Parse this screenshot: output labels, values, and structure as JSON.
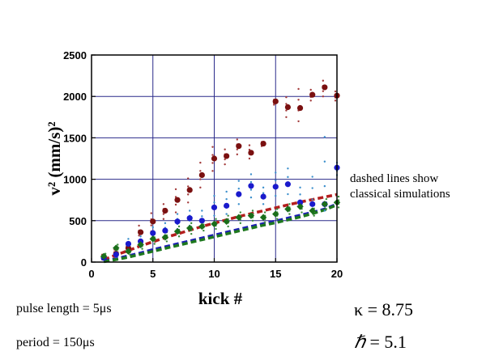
{
  "chart_data": {
    "type": "scatter",
    "xlabel": "kick #",
    "ylabel": "v² (mm/s)²",
    "xlim": [
      0,
      20
    ],
    "ylim": [
      0,
      2500
    ],
    "x_ticks": [
      0,
      5,
      10,
      15,
      20
    ],
    "y_ticks": [
      0,
      500,
      1000,
      1500,
      2000,
      2500
    ],
    "grid": true,
    "series": [
      {
        "color": "#7a1010",
        "marker": "circle",
        "x": [
          1,
          2,
          3,
          4,
          5,
          6,
          7,
          8,
          9,
          10,
          11,
          12,
          13,
          14,
          15,
          16,
          17,
          18,
          19,
          20
        ],
        "y": [
          60,
          100,
          170,
          360,
          490,
          620,
          750,
          870,
          1050,
          1250,
          1280,
          1400,
          1320,
          1430,
          1940,
          1870,
          1860,
          2020,
          2110,
          2010
        ],
        "spread": [
          [
            30,
            90
          ],
          [
            60,
            150
          ],
          [
            120,
            230
          ],
          [
            260,
            440
          ],
          [
            370,
            590
          ],
          [
            520,
            700
          ],
          [
            600,
            880
          ],
          [
            720,
            1010
          ],
          [
            900,
            1200
          ],
          [
            1100,
            1390
          ],
          [
            1180,
            1360
          ],
          [
            1300,
            1480
          ],
          [
            1250,
            1410
          ],
          [
            1400,
            1450
          ],
          [
            1900,
            1960
          ],
          [
            1750,
            1990
          ],
          [
            1700,
            2090
          ],
          [
            1950,
            2080
          ],
          [
            2000,
            2190
          ],
          [
            1950,
            2060
          ]
        ]
      },
      {
        "color": "#1a1acc",
        "marker": "circle",
        "x": [
          1,
          2,
          3,
          4,
          5,
          6,
          7,
          8,
          9,
          10,
          11,
          12,
          13,
          14,
          15,
          16,
          17,
          18,
          19,
          20
        ],
        "y": [
          50,
          90,
          220,
          250,
          350,
          380,
          490,
          530,
          500,
          660,
          680,
          820,
          920,
          790,
          910,
          940,
          720,
          700,
          700,
          1140
        ],
        "spread": [
          [
            30,
            70
          ],
          [
            60,
            130
          ],
          [
            140,
            280
          ],
          [
            180,
            310
          ],
          [
            260,
            420
          ],
          [
            300,
            470
          ],
          [
            400,
            580
          ],
          [
            440,
            620
          ],
          [
            420,
            620
          ],
          [
            560,
            800
          ],
          [
            580,
            850
          ],
          [
            700,
            980
          ],
          [
            780,
            1060
          ],
          [
            700,
            900
          ],
          [
            800,
            1080
          ],
          [
            820,
            1130
          ],
          [
            650,
            900
          ],
          [
            620,
            1030
          ],
          [
            620,
            1510
          ],
          [
            1050,
            1200
          ]
        ]
      },
      {
        "color": "#1a6e1a",
        "marker": "diamond",
        "x": [
          1,
          2,
          3,
          4,
          5,
          6,
          7,
          8,
          9,
          10,
          11,
          12,
          13,
          14,
          15,
          16,
          17,
          18,
          19,
          20
        ],
        "y": [
          70,
          170,
          130,
          210,
          280,
          300,
          370,
          410,
          430,
          460,
          490,
          540,
          560,
          540,
          580,
          640,
          670,
          620,
          700,
          720
        ],
        "spread": [
          [
            40,
            100
          ],
          [
            120,
            210
          ],
          [
            90,
            170
          ],
          [
            160,
            260
          ],
          [
            220,
            340
          ],
          [
            250,
            360
          ],
          [
            310,
            430
          ],
          [
            340,
            470
          ],
          [
            380,
            490
          ],
          [
            400,
            520
          ],
          [
            430,
            560
          ],
          [
            470,
            600
          ],
          [
            500,
            620
          ],
          [
            480,
            600
          ],
          [
            520,
            640
          ],
          [
            580,
            700
          ],
          [
            600,
            730
          ],
          [
            560,
            690
          ],
          [
            640,
            760
          ],
          [
            660,
            790
          ]
        ]
      }
    ],
    "classical": [
      {
        "color": "#b41e1e",
        "x": [
          1,
          2,
          3,
          4,
          5,
          6,
          7,
          8,
          9,
          10,
          11,
          12,
          13,
          14,
          15,
          16,
          17,
          18,
          19,
          20
        ],
        "y": [
          30,
          85,
          140,
          195,
          245,
          295,
          340,
          385,
          430,
          470,
          510,
          550,
          585,
          620,
          655,
          690,
          725,
          755,
          785,
          815
        ]
      },
      {
        "color": "#1e1eb4",
        "x": [
          1,
          2,
          3,
          4,
          5,
          6,
          7,
          8,
          9,
          10,
          11,
          12,
          13,
          14,
          15,
          16,
          17,
          18,
          19,
          20
        ],
        "y": [
          10,
          40,
          75,
          110,
          150,
          185,
          220,
          255,
          290,
          325,
          360,
          395,
          430,
          465,
          495,
          530,
          565,
          600,
          640,
          700
        ]
      },
      {
        "color": "#1e781e",
        "x": [
          1,
          2,
          3,
          4,
          5,
          6,
          7,
          8,
          9,
          10,
          11,
          12,
          13,
          14,
          15,
          16,
          17,
          18,
          19,
          20
        ],
        "y": [
          5,
          30,
          60,
          95,
          130,
          165,
          200,
          235,
          270,
          305,
          340,
          375,
          410,
          445,
          475,
          510,
          545,
          585,
          630,
          690
        ]
      }
    ],
    "annotations": [
      "dashed lines show",
      "classical simulations"
    ]
  },
  "params": {
    "pulse_length": "pulse length = 5μs",
    "period": "period = 150μs",
    "kappa": "κ = 8.75",
    "hbar_symbol": "ℏ",
    "hbar_value": " = 5.1"
  }
}
